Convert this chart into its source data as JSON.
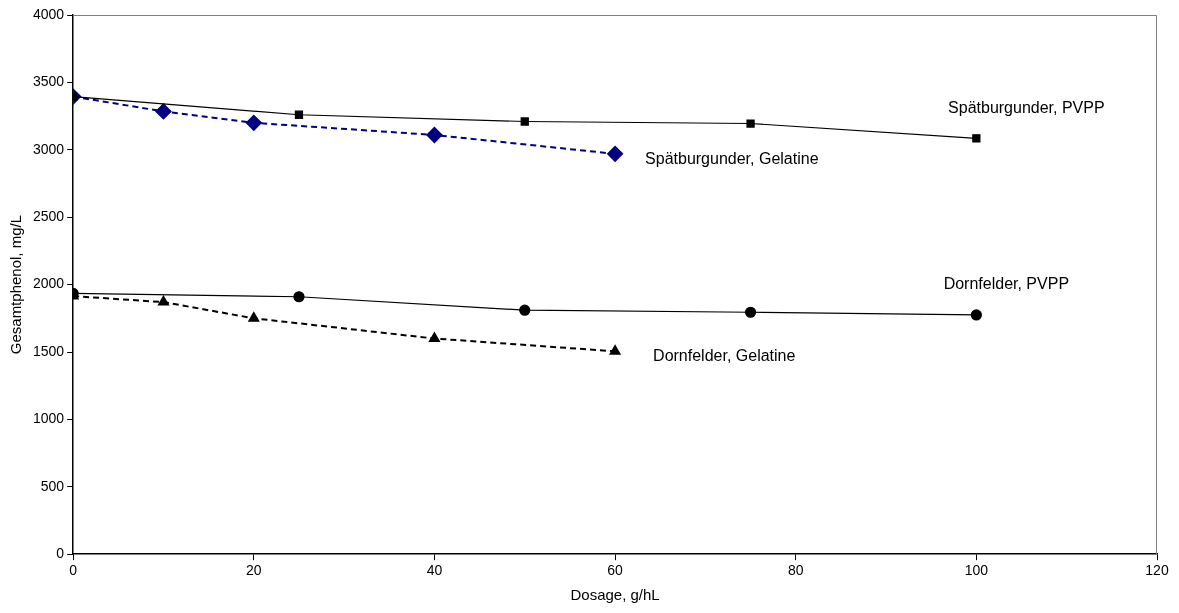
{
  "chart_data": {
    "type": "line",
    "xlabel": "Dosage, g/hL",
    "ylabel": "Gesamtphenol, mg/L",
    "xlim": [
      0,
      120
    ],
    "xticks": [
      0,
      20,
      40,
      60,
      80,
      100,
      120
    ],
    "ylim": [
      0,
      4000
    ],
    "yticks": [
      0,
      500,
      1000,
      1500,
      2000,
      2500,
      3000,
      3500,
      4000
    ],
    "grid": false,
    "legend": false,
    "series": [
      {
        "name": "Spätburgunder, PVPP",
        "color": "#000000",
        "marker": "square",
        "line_style": "solid",
        "x": [
          0,
          25,
          50,
          75,
          100
        ],
        "values": [
          3395,
          3260,
          3210,
          3195,
          3085
        ]
      },
      {
        "name": "Spätburgunder, Gelatine",
        "color": "#000080",
        "marker": "diamond",
        "line_style": "dashed",
        "x": [
          0,
          10,
          20,
          40,
          60
        ],
        "values": [
          3395,
          3285,
          3200,
          3110,
          2970
        ]
      },
      {
        "name": "Dornfelder, PVPP",
        "color": "#000000",
        "marker": "circle",
        "line_style": "solid",
        "x": [
          0,
          25,
          50,
          75,
          100
        ],
        "values": [
          1935,
          1910,
          1810,
          1795,
          1775
        ]
      },
      {
        "name": "Dornfelder, Gelatine",
        "color": "#000000",
        "marker": "triangle",
        "line_style": "dashed",
        "x": [
          0,
          10,
          20,
          40,
          60
        ],
        "values": [
          1915,
          1870,
          1750,
          1600,
          1505
        ]
      }
    ]
  }
}
